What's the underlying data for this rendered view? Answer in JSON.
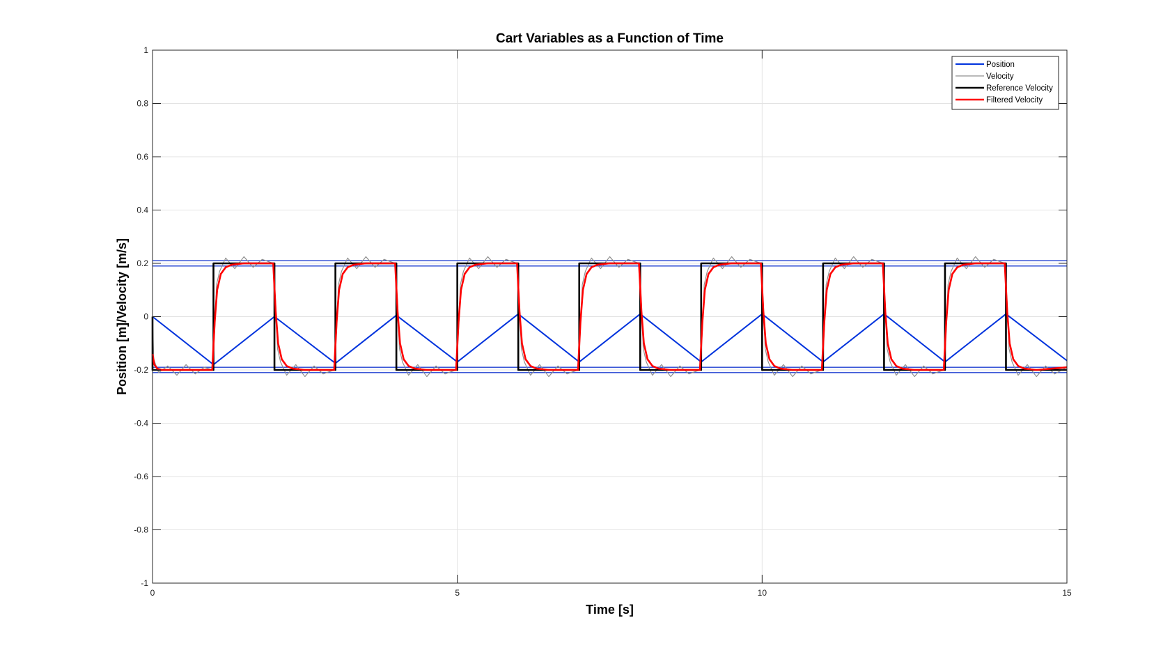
{
  "chart_data": {
    "type": "line",
    "title": "Cart Variables as a Function of Time",
    "xlabel": "Time [s]",
    "ylabel": "Position [m]/Velocity [m/s]",
    "xlim": [
      0,
      15
    ],
    "ylim": [
      -1,
      1
    ],
    "xticks": [
      0,
      5,
      10,
      15
    ],
    "xtick_labels": [
      "0",
      "5",
      "10",
      "15"
    ],
    "yticks": [
      -1,
      -0.8,
      -0.6,
      -0.4,
      -0.2,
      0,
      0.2,
      0.4,
      0.6,
      0.8,
      1
    ],
    "ytick_labels": [
      "-1",
      "-0.8",
      "-0.6",
      "-0.4",
      "-0.2",
      "0",
      "0.2",
      "0.4",
      "0.6",
      "0.8",
      "1"
    ],
    "grid": true,
    "legend_position": "top-right",
    "horizontal_lines": [
      0.21,
      0.19,
      -0.19,
      -0.21
    ],
    "horizontal_line_color": "#1f3fd0",
    "series": [
      {
        "name": "Position",
        "color": "#0033dd",
        "x": [
          0,
          1,
          2,
          3,
          4,
          5,
          6,
          7,
          8,
          9,
          10,
          11,
          12,
          13,
          14,
          15
        ],
        "values": [
          0,
          -0.18,
          0,
          -0.175,
          0.005,
          -0.17,
          0.01,
          -0.17,
          0.01,
          -0.17,
          0.01,
          -0.17,
          0.01,
          -0.17,
          0.01,
          -0.165
        ]
      },
      {
        "name": "Velocity",
        "color": "#909090",
        "x": [
          0,
          0.02,
          0.1,
          0.25,
          0.4,
          0.55,
          0.7,
          0.85,
          0.98,
          1.02,
          1.05,
          1.1,
          1.2,
          1.35,
          1.5,
          1.65,
          1.8,
          1.98,
          2.02,
          2.05,
          2.1,
          2.2,
          2.35,
          2.5,
          2.65,
          2.8,
          2.98,
          3.02,
          3.05,
          3.1,
          3.2,
          3.35,
          3.5,
          3.65,
          3.8,
          3.98,
          4.02,
          4.05,
          4.1,
          4.2,
          4.35,
          4.5,
          4.65,
          4.8,
          4.98,
          5.02,
          5.05,
          5.1,
          5.2,
          5.35,
          5.5,
          5.65,
          5.8,
          5.98,
          6.02,
          6.05,
          6.1,
          6.2,
          6.35,
          6.5,
          6.65,
          6.8,
          6.98,
          7.02,
          7.05,
          7.1,
          7.2,
          7.35,
          7.5,
          7.65,
          7.8,
          7.98,
          8.02,
          8.05,
          8.1,
          8.2,
          8.35,
          8.5,
          8.65,
          8.8,
          8.98,
          9.02,
          9.05,
          9.1,
          9.2,
          9.35,
          9.5,
          9.65,
          9.8,
          9.98,
          10.02,
          10.05,
          10.1,
          10.2,
          10.35,
          10.5,
          10.65,
          10.8,
          10.98,
          11.02,
          11.05,
          11.1,
          11.2,
          11.35,
          11.5,
          11.65,
          11.8,
          11.98,
          12.02,
          12.05,
          12.1,
          12.2,
          12.35,
          12.5,
          12.65,
          12.8,
          12.98,
          13.02,
          13.05,
          13.1,
          13.2,
          13.35,
          13.5,
          13.65,
          13.8,
          13.98,
          14.02,
          14.05,
          14.1,
          14.2,
          14.35,
          14.5,
          14.65,
          14.8,
          15
        ],
        "values": [
          0,
          -0.16,
          -0.21,
          -0.185,
          -0.22,
          -0.18,
          -0.215,
          -0.19,
          -0.2,
          -0.05,
          0.12,
          0.17,
          0.22,
          0.18,
          0.225,
          0.185,
          0.215,
          0.2,
          0.05,
          -0.12,
          -0.17,
          -0.22,
          -0.18,
          -0.225,
          -0.185,
          -0.215,
          -0.2,
          -0.05,
          0.12,
          0.17,
          0.22,
          0.18,
          0.225,
          0.185,
          0.215,
          0.2,
          0.05,
          -0.12,
          -0.17,
          -0.22,
          -0.18,
          -0.225,
          -0.185,
          -0.215,
          -0.2,
          -0.05,
          0.12,
          0.17,
          0.22,
          0.18,
          0.225,
          0.185,
          0.215,
          0.2,
          0.05,
          -0.12,
          -0.17,
          -0.22,
          -0.18,
          -0.225,
          -0.185,
          -0.215,
          -0.2,
          -0.05,
          0.12,
          0.17,
          0.22,
          0.18,
          0.225,
          0.185,
          0.215,
          0.2,
          0.05,
          -0.12,
          -0.17,
          -0.22,
          -0.18,
          -0.225,
          -0.185,
          -0.215,
          -0.2,
          -0.05,
          0.12,
          0.17,
          0.22,
          0.18,
          0.225,
          0.185,
          0.215,
          0.2,
          0.05,
          -0.12,
          -0.17,
          -0.22,
          -0.18,
          -0.225,
          -0.185,
          -0.215,
          -0.2,
          -0.05,
          0.12,
          0.17,
          0.22,
          0.18,
          0.225,
          0.185,
          0.215,
          0.2,
          0.05,
          -0.12,
          -0.17,
          -0.22,
          -0.18,
          -0.225,
          -0.185,
          -0.215,
          -0.2,
          -0.05,
          0.12,
          0.17,
          0.22,
          0.18,
          0.225,
          0.185,
          0.215,
          0.2,
          0.05,
          -0.12,
          -0.17,
          -0.22,
          -0.18,
          -0.225,
          -0.185,
          -0.215,
          -0.19
        ]
      },
      {
        "name": "Reference Velocity",
        "color": "#000000",
        "x": [
          0,
          0,
          1,
          1,
          2,
          2,
          3,
          3,
          4,
          4,
          5,
          5,
          6,
          6,
          7,
          7,
          8,
          8,
          9,
          9,
          10,
          10,
          11,
          11,
          12,
          12,
          13,
          13,
          14,
          14,
          15
        ],
        "values": [
          0,
          -0.2,
          -0.2,
          0.2,
          0.2,
          -0.2,
          -0.2,
          0.2,
          0.2,
          -0.2,
          -0.2,
          0.2,
          0.2,
          -0.2,
          -0.2,
          0.2,
          0.2,
          -0.2,
          -0.2,
          0.2,
          0.2,
          -0.2,
          -0.2,
          0.2,
          0.2,
          -0.2,
          -0.2,
          0.2,
          0.2,
          -0.2,
          -0.2
        ]
      },
      {
        "name": "Filtered Velocity",
        "color": "#ff0000",
        "x": [
          0,
          0.03,
          0.08,
          0.15,
          0.25,
          0.5,
          0.98,
          1.02,
          1.06,
          1.12,
          1.2,
          1.3,
          1.5,
          1.98,
          2.02,
          2.06,
          2.12,
          2.2,
          2.3,
          2.5,
          2.98,
          3.02,
          3.06,
          3.12,
          3.2,
          3.3,
          3.5,
          3.98,
          4.02,
          4.06,
          4.12,
          4.2,
          4.3,
          4.5,
          4.98,
          5.02,
          5.06,
          5.12,
          5.2,
          5.3,
          5.5,
          5.98,
          6.02,
          6.06,
          6.12,
          6.2,
          6.3,
          6.5,
          6.98,
          7.02,
          7.06,
          7.12,
          7.2,
          7.3,
          7.5,
          7.98,
          8.02,
          8.06,
          8.12,
          8.2,
          8.3,
          8.5,
          8.98,
          9.02,
          9.06,
          9.12,
          9.2,
          9.3,
          9.5,
          9.98,
          10.02,
          10.06,
          10.12,
          10.2,
          10.3,
          10.5,
          10.98,
          11.02,
          11.06,
          11.12,
          11.2,
          11.3,
          11.5,
          11.98,
          12.02,
          12.06,
          12.12,
          12.2,
          12.3,
          12.5,
          12.98,
          13.02,
          13.06,
          13.12,
          13.2,
          13.3,
          13.5,
          13.98,
          14.02,
          14.06,
          14.12,
          14.2,
          14.3,
          14.5,
          15
        ],
        "values": [
          -0.14,
          -0.18,
          -0.195,
          -0.2,
          -0.2,
          -0.2,
          -0.2,
          -0.02,
          0.1,
          0.16,
          0.185,
          0.195,
          0.2,
          0.2,
          0.02,
          -0.1,
          -0.16,
          -0.185,
          -0.195,
          -0.2,
          -0.2,
          -0.02,
          0.1,
          0.16,
          0.185,
          0.195,
          0.2,
          0.2,
          0.02,
          -0.1,
          -0.16,
          -0.185,
          -0.195,
          -0.2,
          -0.2,
          -0.02,
          0.1,
          0.16,
          0.185,
          0.195,
          0.2,
          0.2,
          0.02,
          -0.1,
          -0.16,
          -0.185,
          -0.195,
          -0.2,
          -0.2,
          -0.02,
          0.1,
          0.16,
          0.185,
          0.195,
          0.2,
          0.2,
          0.02,
          -0.1,
          -0.16,
          -0.185,
          -0.195,
          -0.2,
          -0.2,
          -0.02,
          0.1,
          0.16,
          0.185,
          0.195,
          0.2,
          0.2,
          0.02,
          -0.1,
          -0.16,
          -0.185,
          -0.195,
          -0.2,
          -0.2,
          -0.02,
          0.1,
          0.16,
          0.185,
          0.195,
          0.2,
          0.2,
          0.02,
          -0.1,
          -0.16,
          -0.185,
          -0.195,
          -0.2,
          -0.2,
          -0.02,
          0.1,
          0.16,
          0.185,
          0.195,
          0.2,
          0.2,
          0.02,
          -0.1,
          -0.16,
          -0.185,
          -0.195,
          -0.2,
          -0.19
        ]
      }
    ]
  }
}
